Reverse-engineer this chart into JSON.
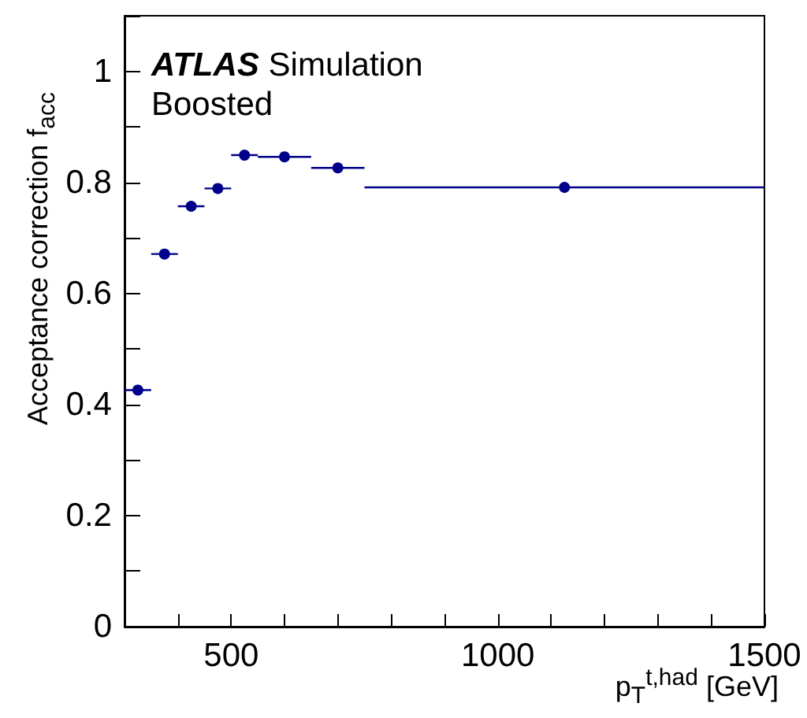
{
  "chart_data": {
    "type": "scatter",
    "xlabel": "p$_{T}$$^{t,had}$ [GeV]",
    "ylabel": "Acceptance correction f$_{acc}$",
    "annotations": [
      "ATLAS Simulation",
      "Boosted"
    ],
    "x": [
      325,
      375,
      425,
      475,
      525,
      600,
      700,
      1125
    ],
    "series": [
      {
        "color": "#00008b",
        "values": [
          0.426,
          0.671,
          0.757,
          0.789,
          0.849,
          0.846,
          0.826,
          0.791
        ],
        "xerrors": [
          [
            300,
            350
          ],
          [
            350,
            400
          ],
          [
            400,
            450
          ],
          [
            450,
            500
          ],
          [
            500,
            550
          ],
          [
            550,
            650
          ],
          [
            650,
            750
          ],
          [
            750,
            1500
          ]
        ],
        "errors": [
          null,
          null,
          null,
          null,
          null,
          null,
          0.005,
          0.01
        ]
      }
    ],
    "xlim": [
      300,
      1500
    ],
    "ylim": [
      0,
      1.1
    ],
    "xticks": [
      {
        "value": 300,
        "label": null
      },
      {
        "value": 400,
        "label": null
      },
      500,
      {
        "value": 600,
        "label": null
      },
      {
        "value": 700,
        "label": null
      },
      {
        "value": 800,
        "label": null
      },
      {
        "value": 900,
        "label": null
      },
      1000,
      {
        "value": 1100,
        "label": null
      },
      {
        "value": 1200,
        "label": null
      },
      {
        "value": 1300,
        "label": null
      },
      {
        "value": 1400,
        "label": null
      },
      1500
    ],
    "yticks": [
      0,
      {
        "value": 0.1,
        "label": null
      },
      0.2,
      {
        "value": 0.3,
        "label": null
      },
      0.4,
      {
        "value": 0.5,
        "label": null
      },
      0.6,
      {
        "value": 0.7,
        "label": null
      },
      0.8,
      {
        "value": 0.9,
        "label": null
      },
      1,
      {
        "value": 1.1,
        "label": null
      }
    ],
    "grid": false,
    "marker": "circle"
  }
}
